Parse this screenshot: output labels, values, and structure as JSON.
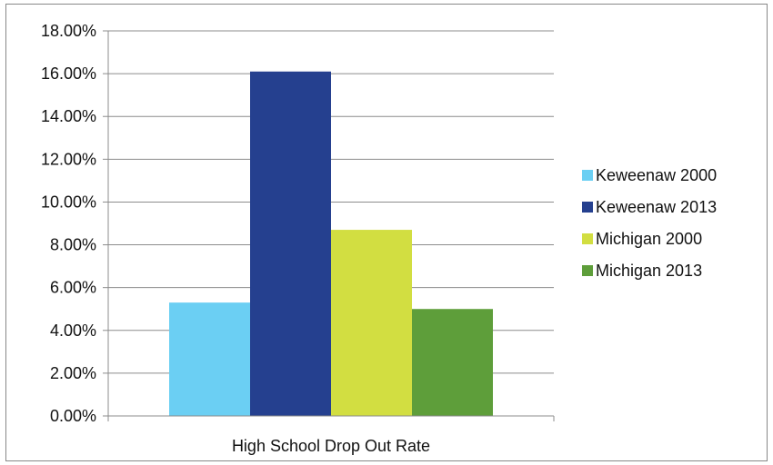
{
  "chart_data": {
    "type": "bar",
    "categories": [
      "High School Drop Out Rate"
    ],
    "series": [
      {
        "name": "Keweenaw 2000",
        "values": [
          5.3
        ],
        "color": "#6bcff3"
      },
      {
        "name": "Keweenaw 2013",
        "values": [
          16.1
        ],
        "color": "#25408f"
      },
      {
        "name": "Michigan 2000",
        "values": [
          8.7
        ],
        "color": "#d2de41"
      },
      {
        "name": "Michigan 2013",
        "values": [
          5.0
        ],
        "color": "#5e9e3a"
      }
    ],
    "y_ticks": [
      "0.00%",
      "2.00%",
      "4.00%",
      "6.00%",
      "8.00%",
      "10.00%",
      "12.00%",
      "14.00%",
      "16.00%",
      "18.00%"
    ],
    "ylim": [
      0,
      18
    ],
    "y_unit": "%",
    "title": "",
    "xlabel": "",
    "ylabel": "",
    "grid": true,
    "legend_position": "right",
    "gridline_color": "#8c8c8c"
  }
}
